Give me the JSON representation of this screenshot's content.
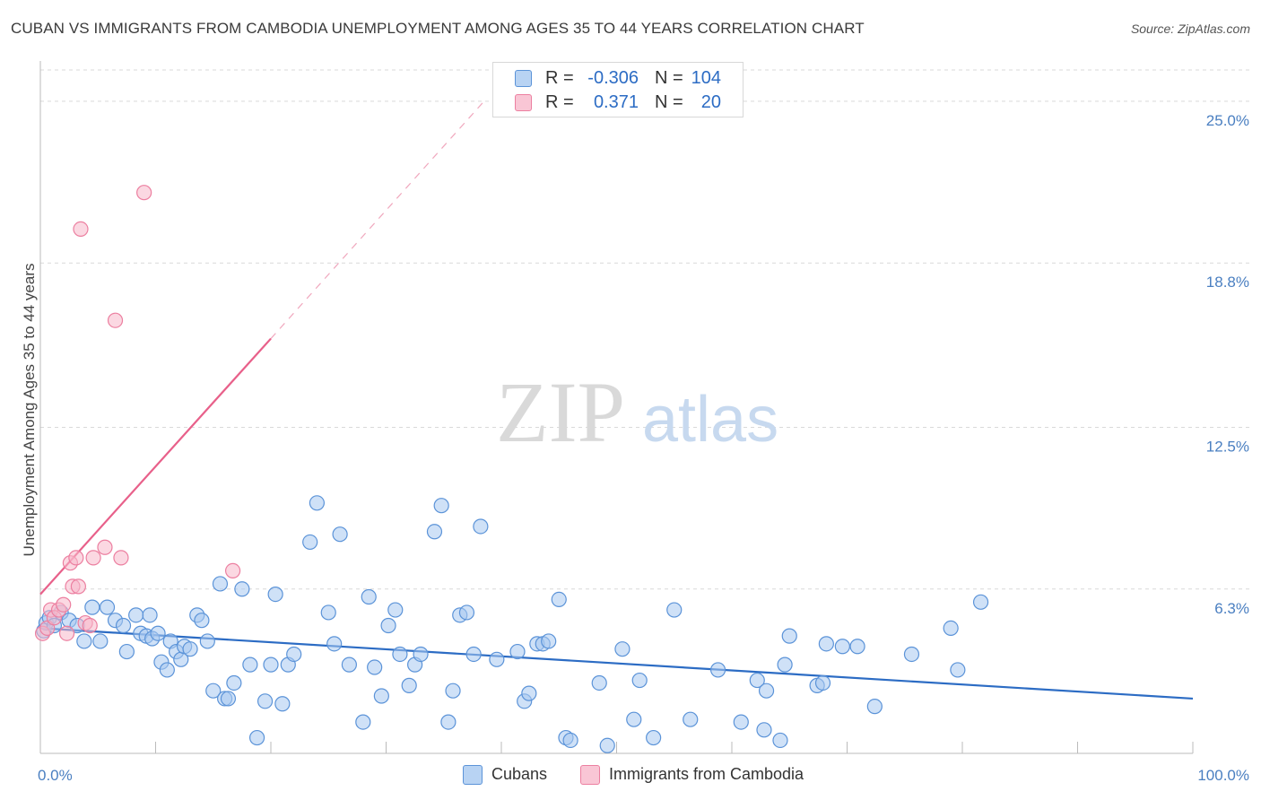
{
  "title": "CUBAN VS IMMIGRANTS FROM CAMBODIA UNEMPLOYMENT AMONG AGES 35 TO 44 YEARS CORRELATION CHART",
  "source": "Source: ZipAtlas.com",
  "watermark": {
    "zip": "ZIP",
    "atlas": "atlas"
  },
  "legend": {
    "r_label": "R =",
    "n_label": "N =",
    "series": [
      {
        "name": "Cubans",
        "r": "-0.306",
        "n": "104"
      },
      {
        "name": "Immigrants from Cambodia",
        "r": "0.371",
        "n": "20"
      }
    ]
  },
  "colors": {
    "cubans_fill": "#a8c8f0",
    "cubans_stroke": "#5b93d8",
    "cubans_line": "#2c6cc4",
    "cambodia_fill": "#f7b8cb",
    "cambodia_stroke": "#ec7fa0",
    "cambodia_line": "#e8608a",
    "tick_text": "#4a7fc1",
    "grid": "#d9d9d9"
  },
  "chart_data": {
    "type": "scatter",
    "title": "CUBAN VS IMMIGRANTS FROM CAMBODIA UNEMPLOYMENT AMONG AGES 35 TO 44 YEARS CORRELATION CHART",
    "xlabel": "",
    "ylabel": "Unemployment Among Ages 35 to 44 years",
    "xlim": [
      0,
      100
    ],
    "ylim": [
      0,
      26.2
    ],
    "x_tick_labels": [
      "0.0%",
      "100.0%"
    ],
    "y_ticks": [
      6.3,
      12.5,
      18.8,
      25.0
    ],
    "y_tick_labels": [
      "6.3%",
      "12.5%",
      "18.8%",
      "25.0%"
    ],
    "grid": true,
    "series": [
      {
        "name": "Cubans",
        "points": [
          [
            0.3,
            4.7
          ],
          [
            0.5,
            5.0
          ],
          [
            0.8,
            5.2
          ],
          [
            1.2,
            4.9
          ],
          [
            1.8,
            5.4
          ],
          [
            2.5,
            5.1
          ],
          [
            3.2,
            4.9
          ],
          [
            3.8,
            4.3
          ],
          [
            4.5,
            5.6
          ],
          [
            5.2,
            4.3
          ],
          [
            5.8,
            5.6
          ],
          [
            6.5,
            5.1
          ],
          [
            7.2,
            4.9
          ],
          [
            7.5,
            3.9
          ],
          [
            8.3,
            5.3
          ],
          [
            8.7,
            4.6
          ],
          [
            9.2,
            4.5
          ],
          [
            9.5,
            5.3
          ],
          [
            9.7,
            4.4
          ],
          [
            10.2,
            4.6
          ],
          [
            10.5,
            3.5
          ],
          [
            11.0,
            3.2
          ],
          [
            11.3,
            4.3
          ],
          [
            11.8,
            3.9
          ],
          [
            12.2,
            3.6
          ],
          [
            12.5,
            4.1
          ],
          [
            13.0,
            4.0
          ],
          [
            13.6,
            5.3
          ],
          [
            14.0,
            5.1
          ],
          [
            14.5,
            4.3
          ],
          [
            15.0,
            2.4
          ],
          [
            15.6,
            6.5
          ],
          [
            16.0,
            2.1
          ],
          [
            16.3,
            2.1
          ],
          [
            16.8,
            2.7
          ],
          [
            17.5,
            6.3
          ],
          [
            18.2,
            3.4
          ],
          [
            18.8,
            0.6
          ],
          [
            19.5,
            2.0
          ],
          [
            20.0,
            3.4
          ],
          [
            20.4,
            6.1
          ],
          [
            21.0,
            1.9
          ],
          [
            21.5,
            3.4
          ],
          [
            22.0,
            3.8
          ],
          [
            23.4,
            8.1
          ],
          [
            24.0,
            9.6
          ],
          [
            25.0,
            5.4
          ],
          [
            25.5,
            4.2
          ],
          [
            26.0,
            8.4
          ],
          [
            26.8,
            3.4
          ],
          [
            28.0,
            1.2
          ],
          [
            28.5,
            6.0
          ],
          [
            29.0,
            3.3
          ],
          [
            29.6,
            2.2
          ],
          [
            30.2,
            4.9
          ],
          [
            30.8,
            5.5
          ],
          [
            31.2,
            3.8
          ],
          [
            32.0,
            2.6
          ],
          [
            32.5,
            3.4
          ],
          [
            33.0,
            3.8
          ],
          [
            34.2,
            8.5
          ],
          [
            34.8,
            9.5
          ],
          [
            35.4,
            1.2
          ],
          [
            35.8,
            2.4
          ],
          [
            36.4,
            5.3
          ],
          [
            37.0,
            5.4
          ],
          [
            37.6,
            3.8
          ],
          [
            38.2,
            8.7
          ],
          [
            39.6,
            3.6
          ],
          [
            41.4,
            3.9
          ],
          [
            42.0,
            2.0
          ],
          [
            42.4,
            2.3
          ],
          [
            43.1,
            4.2
          ],
          [
            43.6,
            4.2
          ],
          [
            44.1,
            4.3
          ],
          [
            45.0,
            5.9
          ],
          [
            45.6,
            0.6
          ],
          [
            46.0,
            0.5
          ],
          [
            48.5,
            2.7
          ],
          [
            49.2,
            0.3
          ],
          [
            50.5,
            4.0
          ],
          [
            51.5,
            1.3
          ],
          [
            52.0,
            2.8
          ],
          [
            53.2,
            0.6
          ],
          [
            55.0,
            5.5
          ],
          [
            56.4,
            1.3
          ],
          [
            58.8,
            3.2
          ],
          [
            60.8,
            1.2
          ],
          [
            62.2,
            2.8
          ],
          [
            62.8,
            0.9
          ],
          [
            63.0,
            2.4
          ],
          [
            64.2,
            0.5
          ],
          [
            64.6,
            3.4
          ],
          [
            65.0,
            4.5
          ],
          [
            67.4,
            2.6
          ],
          [
            67.9,
            2.7
          ],
          [
            68.2,
            4.2
          ],
          [
            69.6,
            4.1
          ],
          [
            70.9,
            4.1
          ],
          [
            72.4,
            1.8
          ],
          [
            75.6,
            3.8
          ],
          [
            79.0,
            4.8
          ],
          [
            79.6,
            3.2
          ],
          [
            81.6,
            5.8
          ]
        ]
      },
      {
        "name": "Immigrants from Cambodia",
        "points": [
          [
            0.2,
            4.6
          ],
          [
            0.6,
            4.8
          ],
          [
            0.9,
            5.5
          ],
          [
            1.2,
            5.2
          ],
          [
            1.6,
            5.5
          ],
          [
            2.0,
            5.7
          ],
          [
            2.3,
            4.6
          ],
          [
            2.6,
            7.3
          ],
          [
            2.8,
            6.4
          ],
          [
            3.1,
            7.5
          ],
          [
            3.3,
            6.4
          ],
          [
            3.5,
            20.1
          ],
          [
            3.9,
            5.0
          ],
          [
            4.3,
            4.9
          ],
          [
            4.6,
            7.5
          ],
          [
            5.6,
            7.9
          ],
          [
            6.5,
            16.6
          ],
          [
            7.0,
            7.5
          ],
          [
            9.0,
            21.5
          ],
          [
            16.7,
            7.0
          ]
        ]
      }
    ],
    "trendlines": [
      {
        "series": "Cubans",
        "from": [
          0,
          4.8
        ],
        "to": [
          100,
          2.1
        ]
      },
      {
        "series": "Immigrants from Cambodia",
        "from": [
          0,
          6.1
        ],
        "to": [
          20,
          15.9
        ],
        "dashed_extension_to": [
          38.5,
          25.0
        ]
      }
    ]
  }
}
